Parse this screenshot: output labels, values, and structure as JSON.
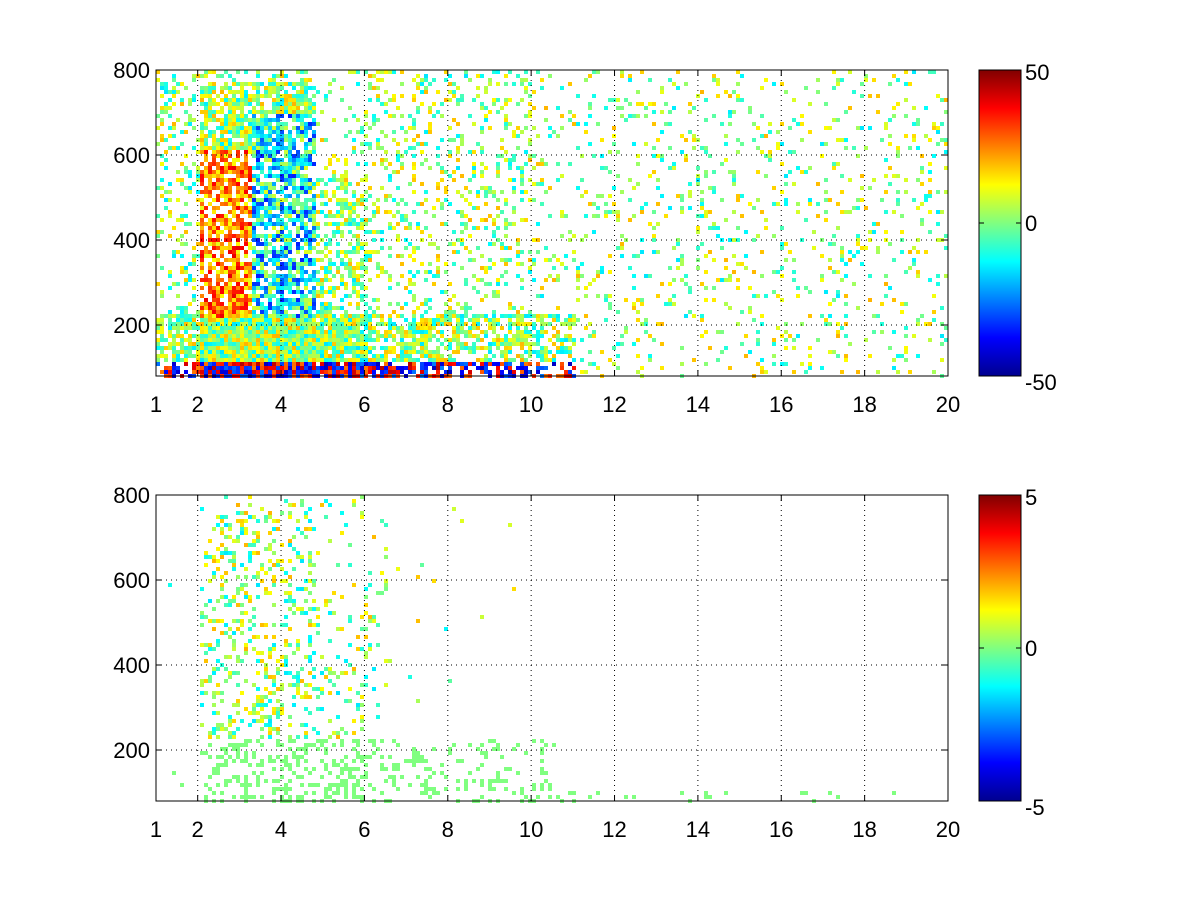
{
  "chart_data": [
    {
      "type": "heatmap",
      "title": "",
      "xlabel": "",
      "ylabel": "",
      "xlim": [
        1,
        20
      ],
      "ylim": [
        80,
        800
      ],
      "x_ticks": [
        1,
        2,
        4,
        6,
        8,
        10,
        12,
        14,
        16,
        18,
        20
      ],
      "y_ticks": [
        200,
        400,
        600,
        800
      ],
      "grid": true,
      "colormap": "jet",
      "clim": [
        -50,
        50
      ],
      "colorbar_ticks": [
        50,
        0,
        -50
      ],
      "colorbar_tick_labels": [
        "50",
        "0",
        "-50"
      ]
    },
    {
      "type": "heatmap",
      "title": "",
      "xlabel": "",
      "ylabel": "",
      "xlim": [
        1,
        20
      ],
      "ylim": [
        80,
        800
      ],
      "x_ticks": [
        1,
        2,
        4,
        6,
        8,
        10,
        12,
        14,
        16,
        18,
        20
      ],
      "y_ticks": [
        200,
        400,
        600,
        800
      ],
      "grid": true,
      "colormap": "jet",
      "clim": [
        -5,
        5
      ],
      "colorbar_ticks": [
        5,
        0,
        -5
      ],
      "colorbar_tick_labels": [
        "5",
        "0",
        "-5"
      ]
    }
  ]
}
